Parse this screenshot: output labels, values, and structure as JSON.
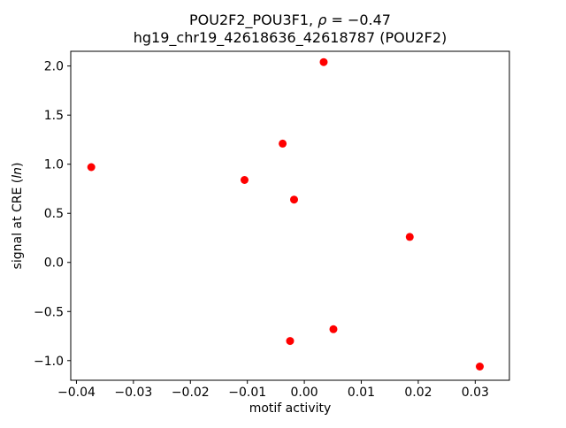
{
  "chart_data": {
    "type": "scatter",
    "title": "POU2F2_POU3F1, ρ = −0.47\nhg19_chr19_42618636_42618787 (POU2F2)",
    "title_parts": {
      "line1_prefix": "POU2F2_POU3F1, ",
      "line1_rho": "ρ",
      "line1_suffix": " = −0.47",
      "line2": "hg19_chr19_42618636_42618787 (POU2F2)"
    },
    "xlabel": "motif activity",
    "ylabel": "signal at CRE (ln)",
    "ylabel_parts": {
      "prefix": "signal at CRE (",
      "italic": "ln",
      "suffix": ")"
    },
    "marker_color": "#ff0000",
    "grid": false,
    "legend": "none",
    "xlim": [
      -0.041,
      0.036
    ],
    "ylim": [
      -1.2,
      2.15
    ],
    "xticks": {
      "values": [
        -0.04,
        -0.03,
        -0.02,
        -0.01,
        0.0,
        0.01,
        0.02,
        0.03
      ],
      "labels": [
        "−0.04",
        "−0.03",
        "−0.02",
        "−0.01",
        "0.00",
        "0.01",
        "0.02",
        "0.03"
      ]
    },
    "yticks": {
      "values": [
        -1.0,
        -0.5,
        0.0,
        0.5,
        1.0,
        1.5,
        2.0
      ],
      "labels": [
        "−1.0",
        "−0.5",
        "0.0",
        "0.5",
        "1.0",
        "1.5",
        "2.0"
      ]
    },
    "points": [
      [
        -0.0374,
        0.97
      ],
      [
        -0.0105,
        0.84
      ],
      [
        -0.0038,
        1.21
      ],
      [
        -0.0018,
        0.64
      ],
      [
        0.0034,
        2.04
      ],
      [
        -0.0025,
        -0.8
      ],
      [
        0.0051,
        -0.68
      ],
      [
        0.0185,
        0.26
      ],
      [
        0.0308,
        -1.06
      ]
    ]
  }
}
